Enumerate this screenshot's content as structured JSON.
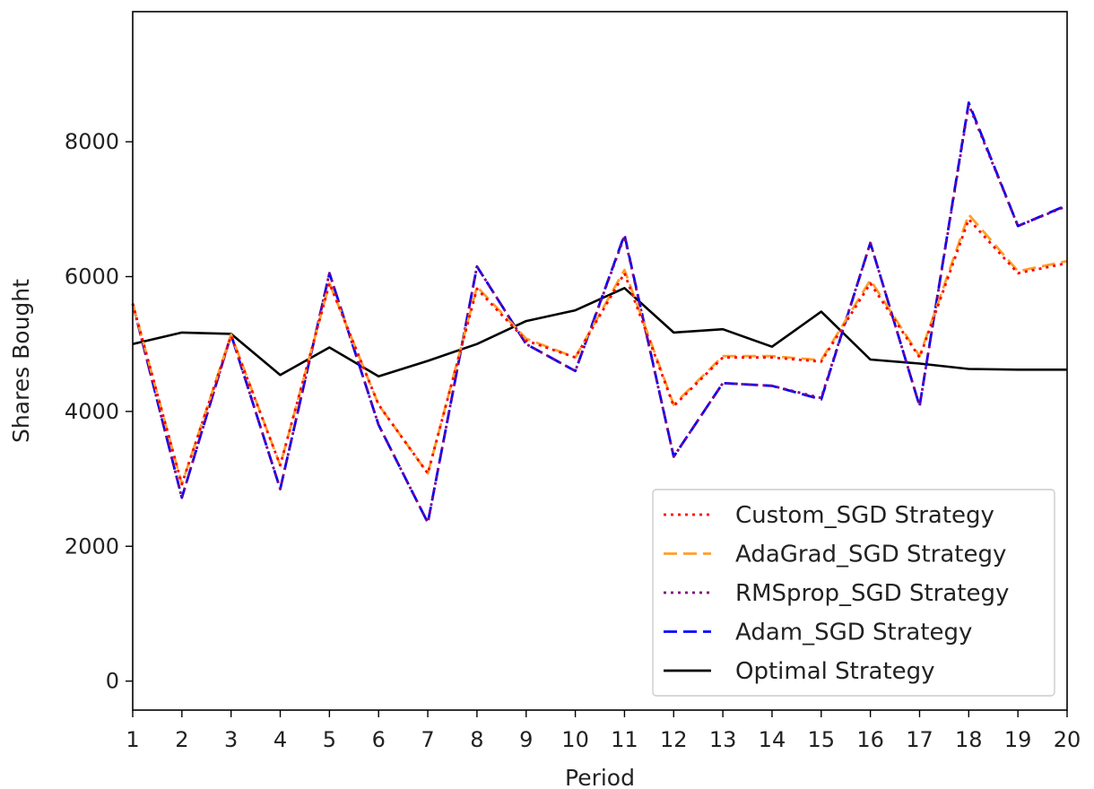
{
  "chart_data": {
    "type": "line",
    "title": "",
    "xlabel": "Period",
    "ylabel": "Shares Bought",
    "xlim": [
      1,
      20
    ],
    "ylim": [
      -430,
      9930
    ],
    "x": [
      1,
      2,
      3,
      4,
      5,
      6,
      7,
      8,
      9,
      10,
      11,
      12,
      13,
      14,
      15,
      16,
      17,
      18,
      19,
      20
    ],
    "xticks": [
      "1",
      "2",
      "3",
      "4",
      "5",
      "6",
      "7",
      "8",
      "9",
      "10",
      "11",
      "12",
      "13",
      "14",
      "15",
      "16",
      "17",
      "18",
      "19",
      "20"
    ],
    "yticks": [
      0,
      2000,
      4000,
      6000,
      8000
    ],
    "ytick_labels": [
      "0",
      "2000",
      "4000",
      "6000",
      "8000"
    ],
    "grid": false,
    "legend_position": "lower-right",
    "series": [
      {
        "name": "Custom_SGD Strategy",
        "color": "#ff0000",
        "dash": "dotted",
        "values": [
          5600,
          2920,
          5120,
          3200,
          5900,
          4100,
          3080,
          5820,
          5050,
          4800,
          6050,
          4080,
          4800,
          4800,
          4740,
          5900,
          4800,
          6850,
          6050,
          6200
        ]
      },
      {
        "name": "AdaGrad_SGD Strategy",
        "color": "#ff9f2a",
        "dash": "dashed",
        "values": [
          5600,
          2920,
          5140,
          3200,
          5900,
          4100,
          3080,
          5850,
          5080,
          4800,
          6100,
          4100,
          4820,
          4820,
          4760,
          5950,
          4820,
          6920,
          6080,
          6230
        ]
      },
      {
        "name": "RMSprop_SGD Strategy",
        "color": "#800080",
        "dash": "dotted",
        "values": [
          5600,
          2720,
          5140,
          2850,
          6050,
          3800,
          2350,
          6150,
          5000,
          4600,
          6600,
          3330,
          4420,
          4380,
          4200,
          6500,
          4080,
          8550,
          6750,
          7050
        ]
      },
      {
        "name": "Adam_SGD Strategy",
        "color": "#0000ff",
        "dash": "dashed",
        "values": [
          5600,
          2720,
          5140,
          2850,
          6050,
          3800,
          2350,
          6150,
          5000,
          4600,
          6620,
          3330,
          4420,
          4380,
          4180,
          6500,
          4080,
          8580,
          6750,
          7060
        ]
      },
      {
        "name": "Optimal Strategy",
        "color": "#000000",
        "dash": "solid",
        "values": [
          5000,
          5170,
          5150,
          4540,
          4950,
          4520,
          4750,
          5000,
          5340,
          5500,
          5830,
          5170,
          5220,
          4960,
          5480,
          4770,
          4710,
          4630,
          4620,
          4620
        ]
      }
    ]
  }
}
